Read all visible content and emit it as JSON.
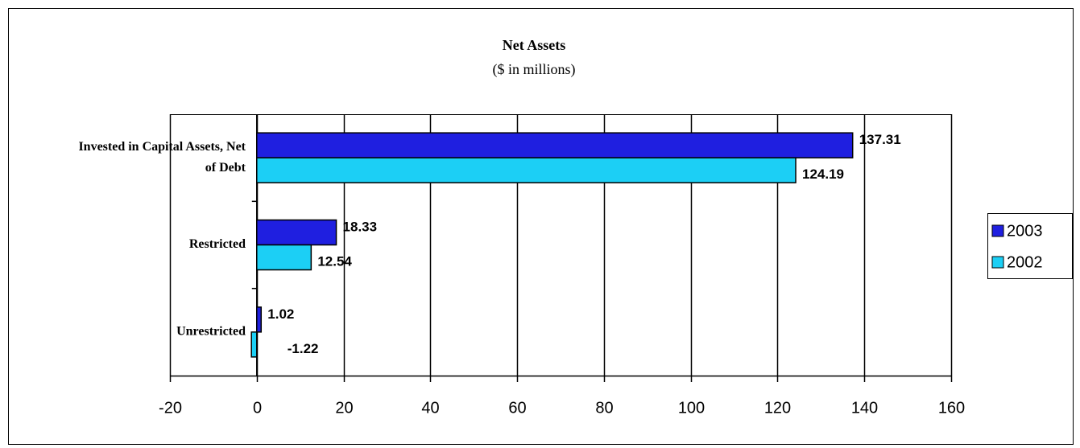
{
  "chart_data": {
    "type": "hbar",
    "title": "Net Assets",
    "subtitle": "($ in millions)",
    "categories": [
      "Invested in Capital Assets, Net of Debt",
      "Restricted",
      "Unrestricted"
    ],
    "series": [
      {
        "name": "2003",
        "color": "#1f1fe0",
        "values": [
          137.31,
          18.33,
          1.02
        ]
      },
      {
        "name": "2002",
        "color": "#1ccff5",
        "values": [
          124.19,
          12.54,
          -1.22
        ]
      }
    ],
    "xlim": [
      -20,
      160
    ],
    "xticks": [
      -20,
      0,
      20,
      40,
      60,
      80,
      100,
      120,
      140,
      160
    ],
    "grid": true,
    "legend": "right"
  }
}
